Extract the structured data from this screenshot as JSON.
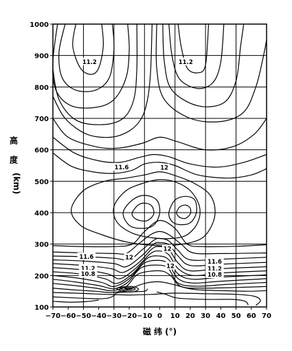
{
  "chart_data": {
    "type": "contour",
    "xlabel": "磁 纬 (°)",
    "ylabel": "高 度 (km)",
    "xlim": [
      -70,
      70
    ],
    "ylim": [
      100,
      1000
    ],
    "grid": true,
    "x_ticks": [
      "-70",
      "-60",
      "-50",
      "-40",
      "-30",
      "-20",
      "-10",
      "0",
      "10",
      "20",
      "30",
      "40",
      "50",
      "60",
      "70"
    ],
    "y_ticks": [
      "100",
      "200",
      "300",
      "400",
      "500",
      "600",
      "700",
      "800",
      "900",
      "1000"
    ],
    "contour_labels": [
      {
        "text": "11.2",
        "x": -46,
        "y": 880
      },
      {
        "text": "11.2",
        "x": 17,
        "y": 880
      },
      {
        "text": "11.6",
        "x": -25,
        "y": 545
      },
      {
        "text": "12",
        "x": 3,
        "y": 543
      },
      {
        "text": "12",
        "x": -20,
        "y": 258
      },
      {
        "text": "12",
        "x": 5,
        "y": 285
      },
      {
        "text": "12",
        "x": 7,
        "y": 230
      },
      {
        "text": "11.6",
        "x": -48,
        "y": 260
      },
      {
        "text": "11.2",
        "x": -47,
        "y": 223
      },
      {
        "text": "10.8",
        "x": -47,
        "y": 205
      },
      {
        "text": "11.6",
        "x": 36,
        "y": 245
      },
      {
        "text": "11.2",
        "x": 36,
        "y": 222
      },
      {
        "text": "10.8",
        "x": 36,
        "y": 203
      }
    ]
  }
}
